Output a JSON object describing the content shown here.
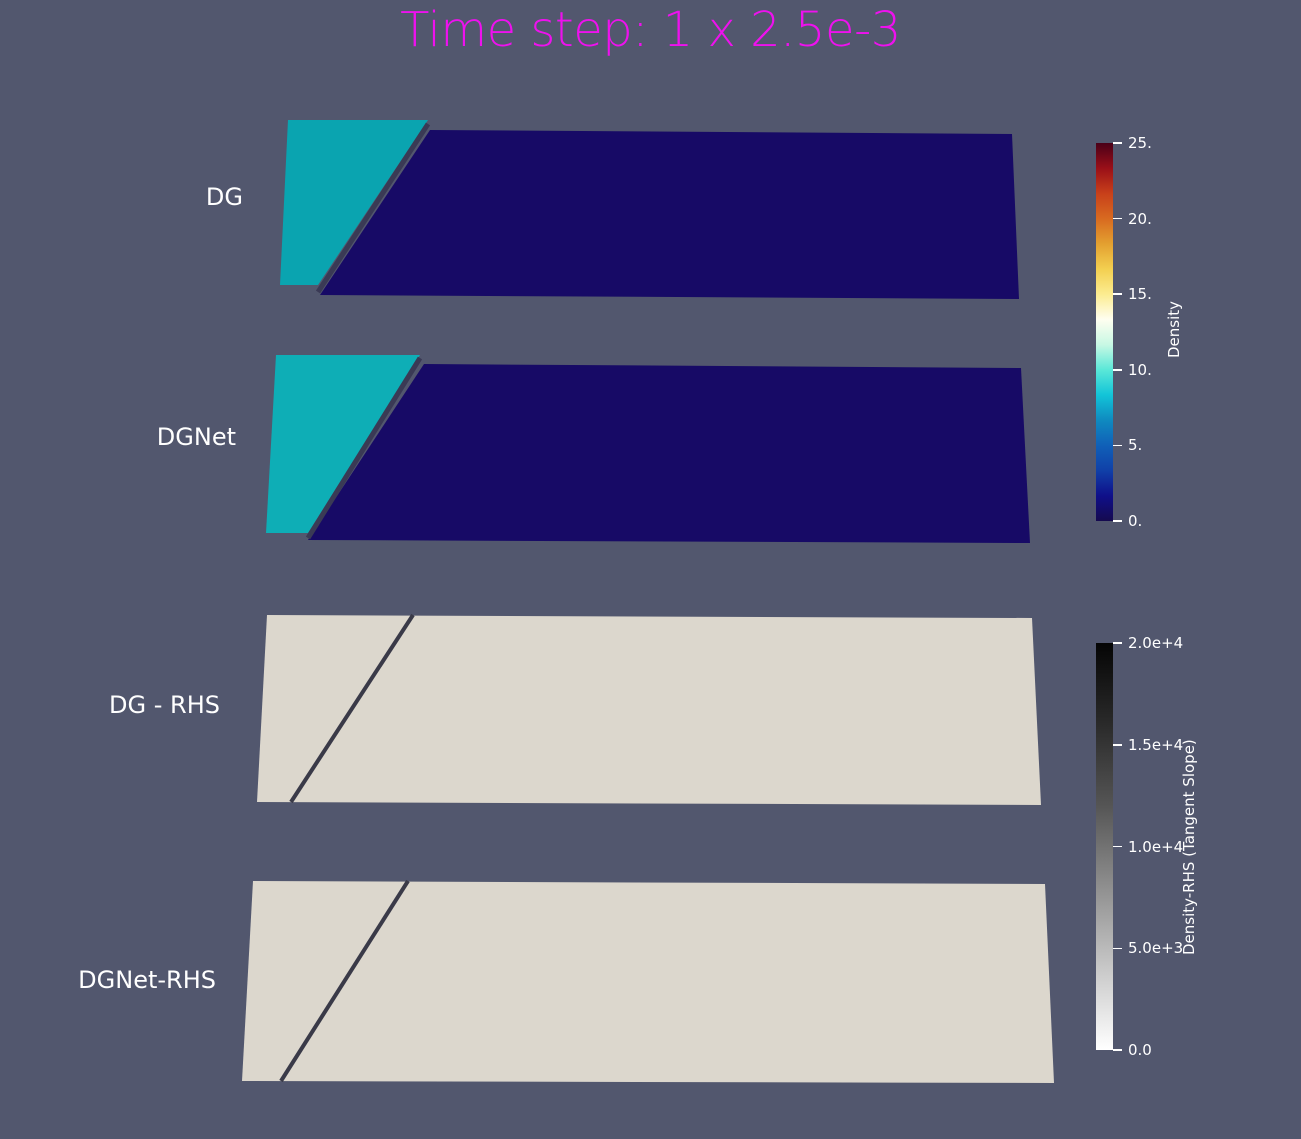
{
  "title": "Time step: 1 x 2.5e-3",
  "title_color": "#ee11ee",
  "background": "#52576e",
  "panels": [
    {
      "label": "DG",
      "field": "Density"
    },
    {
      "label": "DGNet",
      "field": "Density"
    },
    {
      "label": "DG - RHS",
      "field": "Density-RHS"
    },
    {
      "label": "DGNet-RHS",
      "field": "Density-RHS"
    }
  ],
  "density_colorbar": {
    "title": "Density",
    "ticks": [
      "25.",
      "20.",
      "15.",
      "10.",
      "5.",
      "0."
    ],
    "range": [
      0,
      25
    ],
    "stops": [
      "#150a4f",
      "#0f0f8a",
      "#1040a8",
      "#1060b8",
      "#0f8ac0",
      "#12c4d8",
      "#5ae8d8",
      "#c8f8e4",
      "#fffef0",
      "#fcec90",
      "#f3cf50",
      "#e3a030",
      "#d86a20",
      "#c8401a",
      "#9a0f18",
      "#4a0018"
    ]
  },
  "rhs_colorbar": {
    "title": "Density-RHS (Tangent Slope)",
    "ticks": [
      "2.0e+4",
      "1.5e+4",
      "1.0e+4",
      "5.0e+3",
      "0.0"
    ],
    "range": [
      0,
      20000
    ],
    "stops": [
      "#ffffff",
      "#c8c8c8",
      "#8f8f8f",
      "#555555",
      "#2a2a2a",
      "#050505"
    ]
  },
  "colors": {
    "low_density": "#170a66",
    "high_density": "#0aa4b0",
    "rhs_background": "#dcd7cd",
    "shock": "#3a3a48"
  }
}
